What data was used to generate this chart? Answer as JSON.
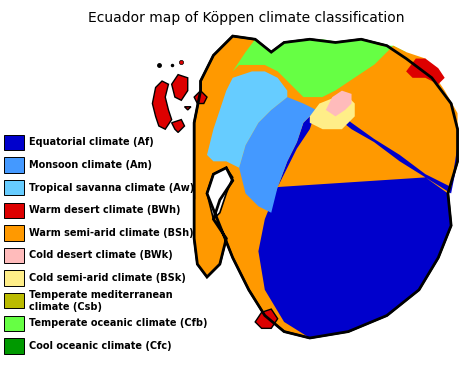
{
  "title": "Ecuador map of Köppen climate classification",
  "title_fontsize": 10,
  "legend_entries": [
    {
      "label": "Equatorial climate (Af)",
      "color": "#0000CC"
    },
    {
      "label": "Monsoon climate (Am)",
      "color": "#4499FF"
    },
    {
      "label": "Tropical savanna climate (Aw)",
      "color": "#66CCFF"
    },
    {
      "label": "Warm desert climate (BWh)",
      "color": "#DD0000"
    },
    {
      "label": "Warm semi-arid climate (BSh)",
      "color": "#FF9900"
    },
    {
      "label": "Cold desert climate (BWk)",
      "color": "#FFBBBB"
    },
    {
      "label": "Cold semi-arid climate (BSk)",
      "color": "#FFEE88"
    },
    {
      "label": "Temperate mediterranean\nclimate (Csb)",
      "color": "#BBBB00"
    },
    {
      "label": "Temperate oceanic climate (Cfb)",
      "color": "#66FF44"
    },
    {
      "label": "Cool oceanic climate (Cfc)",
      "color": "#009900"
    }
  ],
  "legend_fontsize": 7.0,
  "background_color": "#FFFFFF",
  "figure_width": 4.74,
  "figure_height": 3.65,
  "dpi": 100
}
